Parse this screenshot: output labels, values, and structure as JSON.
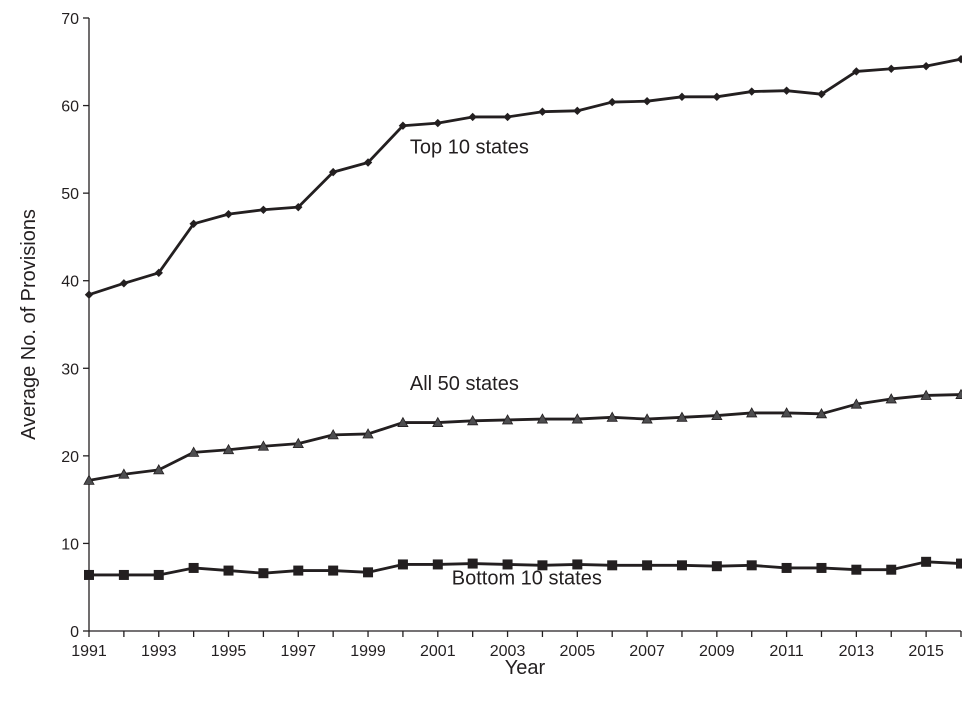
{
  "chart_data": {
    "type": "line",
    "xlabel": "Year",
    "ylabel": "Average No. of Provisions",
    "ylim": [
      0,
      70
    ],
    "xlim": [
      1991,
      2016
    ],
    "yticks": [
      0,
      10,
      20,
      30,
      40,
      50,
      60,
      70
    ],
    "xticks": [
      1991,
      1993,
      1995,
      1997,
      1999,
      2001,
      2003,
      2005,
      2007,
      2009,
      2011,
      2013,
      2015
    ],
    "grid": false,
    "legend": "none (series labeled inline)",
    "x": [
      1991,
      1992,
      1993,
      1994,
      1995,
      1996,
      1997,
      1998,
      1999,
      2000,
      2001,
      2002,
      2003,
      2004,
      2005,
      2006,
      2007,
      2008,
      2009,
      2010,
      2011,
      2012,
      2013,
      2014,
      2015,
      2016
    ],
    "series": [
      {
        "name": "Top 10 states",
        "marker": "diamond",
        "label_anchor": {
          "x": 2000.2,
          "y": 54.5
        },
        "values": [
          38.4,
          39.7,
          40.9,
          46.5,
          47.6,
          48.1,
          48.4,
          52.4,
          53.5,
          57.7,
          58.0,
          58.7,
          58.7,
          59.3,
          59.4,
          60.4,
          60.5,
          61.0,
          61.0,
          61.6,
          61.7,
          61.3,
          63.9,
          64.2,
          64.5,
          65.3
        ]
      },
      {
        "name": "All 50 states",
        "marker": "triangle",
        "label_anchor": {
          "x": 2000.2,
          "y": 27.5
        },
        "values": [
          17.2,
          17.9,
          18.4,
          20.4,
          20.7,
          21.1,
          21.4,
          22.4,
          22.5,
          23.8,
          23.8,
          24.0,
          24.1,
          24.2,
          24.2,
          24.4,
          24.2,
          24.4,
          24.6,
          24.9,
          24.9,
          24.8,
          25.9,
          26.5,
          26.9,
          27.0
        ]
      },
      {
        "name": "Bottom 10 states",
        "marker": "square",
        "label_anchor": {
          "x": 2001.4,
          "y": 5.3
        },
        "values": [
          6.4,
          6.4,
          6.4,
          7.2,
          6.9,
          6.6,
          6.9,
          6.9,
          6.7,
          7.6,
          7.6,
          7.7,
          7.6,
          7.5,
          7.6,
          7.5,
          7.5,
          7.5,
          7.4,
          7.5,
          7.2,
          7.2,
          7.0,
          7.0,
          7.9,
          7.7
        ]
      }
    ],
    "colors": {
      "line": "#231f20",
      "triangle_marker": "#4d4d4f",
      "axis": "#231f20"
    }
  }
}
